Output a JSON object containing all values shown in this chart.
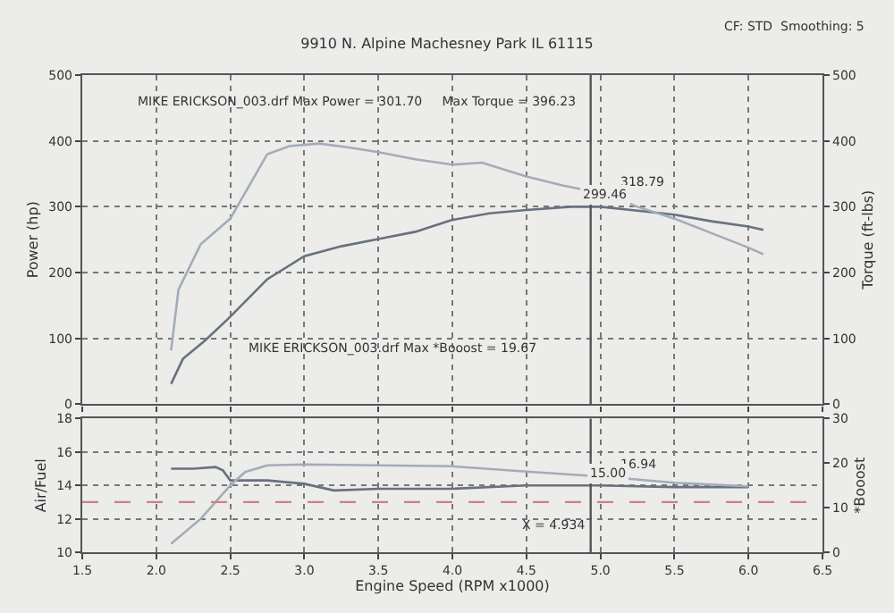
{
  "chart_data": [
    {
      "type": "line",
      "title": "9910 N. Alpine Machesney Park IL 61115",
      "ylabel": "Power (hp)",
      "y2label": "Torque (ft-lbs)",
      "xlim": [
        1.5,
        6.5
      ],
      "xticks": [
        1.5,
        2,
        2.5,
        3,
        3.5,
        4,
        4.5,
        5,
        5.5,
        6,
        6.5
      ],
      "ylim": [
        0,
        500
      ],
      "yticks": [
        0,
        100,
        200,
        300,
        400,
        500
      ],
      "y2lim": [
        0,
        500
      ],
      "y2ticks": [
        0,
        100,
        200,
        300,
        400,
        500
      ],
      "tick_labels": "y",
      "grid": true,
      "marker": "none",
      "line_style": "solid",
      "series": [
        {
          "color": "#68717f",
          "x": [
            2.1,
            2.18,
            2.33,
            2.5,
            2.75,
            3.0,
            3.25,
            3.5,
            3.75,
            4.0,
            4.25,
            4.5,
            4.8,
            5.0,
            5.25,
            5.5,
            5.75,
            6.0,
            6.1
          ],
          "values": [
            31,
            69,
            97,
            133,
            190,
            225,
            240,
            251,
            262,
            280,
            290,
            295,
            300,
            300,
            294,
            288,
            278,
            270,
            265
          ]
        },
        {
          "color": "#a3acb8",
          "axis": "y2",
          "x": [
            2.1,
            2.15,
            2.3,
            2.5,
            2.75,
            2.9,
            3.1,
            3.3,
            3.5,
            3.75,
            4.0,
            4.2,
            4.5,
            4.75,
            5.05,
            5.25,
            5.5,
            5.75,
            6.0,
            6.1
          ],
          "values": [
            82,
            174,
            243,
            282,
            380,
            392,
            396,
            390,
            383,
            372,
            364,
            367,
            346,
            332,
            319,
            300,
            282,
            260,
            238,
            228
          ]
        }
      ],
      "ref_lines": [
        {
          "axis": "x",
          "value": 4.934,
          "color": "#555555"
        }
      ],
      "annotations": [
        "CF: STD  Smoothing: 5",
        "MIKE ERICKSON_003.drf Max Power = 301.70     Max Torque = 396.23",
        "MIKE ERICKSON_003.drf Max *Booost = 19.67",
        {
          "text": "318.79",
          "x": 5.05,
          "y": 319
        },
        {
          "text": "299.46",
          "x": 4.8,
          "y": 300
        }
      ]
    },
    {
      "type": "line",
      "xlabel": "Engine Speed (RPM x1000)",
      "ylabel": "Air/Fuel",
      "y2label": "*Booost",
      "xlim": [
        1.5,
        6.5
      ],
      "xticks": [
        {
          "value": 1.5,
          "label": "1.5"
        },
        {
          "value": 2,
          "label": "2.0"
        },
        {
          "value": 2.5,
          "label": "2.5"
        },
        {
          "value": 3,
          "label": "3.0"
        },
        {
          "value": 3.5,
          "label": "3.5"
        },
        {
          "value": 4,
          "label": "4.0"
        },
        {
          "value": 4.5,
          "label": "4.5"
        },
        {
          "value": 5,
          "label": "5.0"
        },
        {
          "value": 5.5,
          "label": "5.5"
        },
        {
          "value": 6,
          "label": "6.0"
        },
        {
          "value": 6.5,
          "label": "6.5"
        }
      ],
      "ylim": [
        10,
        18
      ],
      "yticks": [
        10,
        12,
        14,
        16,
        18
      ],
      "y2lim": [
        0,
        30
      ],
      "y2ticks": [
        0,
        10,
        20,
        30
      ],
      "grid": true,
      "marker": "none",
      "line_style": "solid",
      "series": [
        {
          "color": "#68717f",
          "x": [
            2.1,
            2.25,
            2.4,
            2.45,
            2.5,
            2.75,
            3.0,
            3.2,
            3.5,
            4.0,
            4.5,
            5.0,
            5.5,
            6.0
          ],
          "values": [
            15.0,
            15.0,
            15.1,
            14.9,
            14.3,
            14.3,
            14.1,
            13.7,
            13.8,
            13.8,
            14.0,
            14.0,
            13.9,
            13.9
          ]
        },
        {
          "color": "#a3acb8",
          "axis": "y2",
          "x": [
            2.1,
            2.3,
            2.5,
            2.6,
            2.75,
            3.0,
            3.5,
            4.0,
            4.5,
            5.05,
            5.5,
            6.0
          ],
          "values": [
            1.9,
            7.5,
            15,
            18,
            19.5,
            19.7,
            19.5,
            19.3,
            18.1,
            16.9,
            15.6,
            14.8
          ]
        }
      ],
      "ref_lines": [
        {
          "axis": "y",
          "value": 13,
          "color": "#d08080",
          "line_style": "dashed"
        },
        {
          "axis": "x",
          "value": 4.934,
          "color": "#555555",
          "label": "X = 4.934"
        }
      ],
      "annotations": [
        {
          "text": "16.94",
          "x": 5.05,
          "y": 14.5
        },
        {
          "text": "15.00",
          "x": 4.85,
          "y": 14.0
        }
      ]
    }
  ]
}
